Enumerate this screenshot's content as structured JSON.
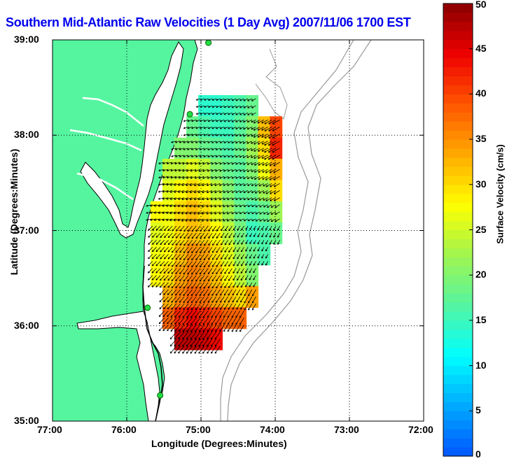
{
  "title": "Southern Mid-Atlantic Raw Velocities (1 Day Avg) 2007/11/06 1700 EST",
  "colors": {
    "title": "#0000ee",
    "land": "#55f5a0",
    "coast": "#000000",
    "isobath": "#999999",
    "station": "#22dd44",
    "grid": "#000000"
  },
  "map": {
    "xlabel": "Longitude (Degrees:Minutes)",
    "ylabel": "Latitude (Degrees:Minutes)",
    "xlim": [
      -77,
      -72
    ],
    "ylim": [
      35,
      39
    ],
    "x_ticks": [
      {
        "value": -77,
        "label": "77:00"
      },
      {
        "value": -76,
        "label": "76:00"
      },
      {
        "value": -75,
        "label": "75:00"
      },
      {
        "value": -74,
        "label": "74:00"
      },
      {
        "value": -73,
        "label": "73:00"
      },
      {
        "value": -72,
        "label": "72:00"
      }
    ],
    "y_ticks": [
      {
        "value": 35,
        "label": "35:00"
      },
      {
        "value": 36,
        "label": "36:00"
      },
      {
        "value": 37,
        "label": "37:00"
      },
      {
        "value": 38,
        "label": "38:00"
      },
      {
        "value": 39,
        "label": "39:00"
      }
    ],
    "grid": "dotted",
    "stations": [
      {
        "lon": -74.9,
        "lat": 38.97
      },
      {
        "lon": -75.15,
        "lat": 38.22
      },
      {
        "lon": -75.72,
        "lat": 36.19
      },
      {
        "lon": -75.55,
        "lat": 35.27
      }
    ]
  },
  "colorbar": {
    "label": "Surface Velocity (cm/s)",
    "range": [
      0,
      50
    ],
    "ticks": [
      {
        "value": 0,
        "label": "0"
      },
      {
        "value": 5,
        "label": "5"
      },
      {
        "value": 10,
        "label": "10"
      },
      {
        "value": 15,
        "label": "15"
      },
      {
        "value": 20,
        "label": "20"
      },
      {
        "value": 25,
        "label": "25"
      },
      {
        "value": 30,
        "label": "30"
      },
      {
        "value": 35,
        "label": "35"
      },
      {
        "value": 40,
        "label": "40"
      },
      {
        "value": 45,
        "label": "45"
      },
      {
        "value": 50,
        "label": "50"
      }
    ],
    "stops": [
      "#0055ff",
      "#00aaff",
      "#00ffff",
      "#55f5a0",
      "#a0f550",
      "#ffff00",
      "#ffaa00",
      "#ff5500",
      "#ee0000",
      "#8a0000"
    ]
  },
  "velocity_field": {
    "extent": {
      "lon": [
        -75.68,
        -73.75
      ],
      "lat": [
        35.75,
        38.42
      ]
    },
    "speed_cm_s": [
      [
        0,
        0,
        0,
        0,
        14,
        14,
        15,
        16,
        18,
        0,
        0,
        0
      ],
      [
        0,
        0,
        0,
        18,
        16,
        15,
        15,
        17,
        20,
        32,
        40,
        0
      ],
      [
        0,
        0,
        20,
        20,
        18,
        17,
        16,
        18,
        22,
        30,
        42,
        0
      ],
      [
        0,
        24,
        24,
        26,
        24,
        20,
        18,
        17,
        20,
        27,
        33,
        0
      ],
      [
        0,
        26,
        28,
        30,
        28,
        24,
        20,
        17,
        18,
        22,
        30,
        0
      ],
      [
        28,
        27,
        30,
        32,
        30,
        26,
        22,
        18,
        16,
        18,
        22,
        0
      ],
      [
        26,
        27,
        30,
        32,
        31,
        28,
        24,
        19,
        15,
        16,
        18,
        0
      ],
      [
        27,
        28,
        32,
        35,
        34,
        30,
        26,
        22,
        18,
        16,
        0,
        0
      ],
      [
        28,
        30,
        34,
        36,
        35,
        32,
        28,
        24,
        20,
        0,
        0,
        0
      ],
      [
        0,
        33,
        36,
        38,
        37,
        34,
        32,
        30,
        34,
        0,
        0,
        0
      ],
      [
        0,
        38,
        42,
        44,
        42,
        40,
        38,
        38,
        0,
        0,
        0,
        0
      ],
      [
        0,
        0,
        47,
        47,
        46,
        44,
        0,
        0,
        0,
        0,
        0,
        0
      ]
    ]
  }
}
